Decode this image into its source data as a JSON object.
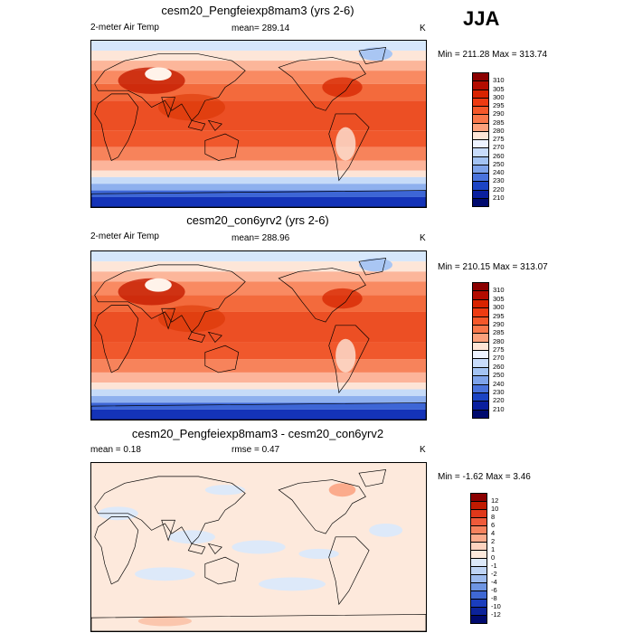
{
  "season": "JJA",
  "panels": [
    {
      "title": "cesm20_Pengfeiexp8mam3 (yrs 2-6)",
      "left_label": "2-meter Air Temp",
      "mid_label": "mean= 289.14",
      "unit": "K",
      "minmax": "Min = 211.28 Max = 313.74",
      "kind": "abs",
      "colorbar_labels": [
        "310",
        "305",
        "300",
        "295",
        "290",
        "285",
        "280",
        "275",
        "270",
        "260",
        "250",
        "240",
        "230",
        "220",
        "210"
      ],
      "colorbar_colors": [
        "#8b0000",
        "#b30c00",
        "#d92300",
        "#ee3b12",
        "#f5582a",
        "#f9774a",
        "#fca17c",
        "#fee5d6",
        "#eef3ff",
        "#c8dcfb",
        "#a3c3f3",
        "#7ea3ea",
        "#4a73dc",
        "#1c44c4",
        "#0a1f9e",
        "#000a6e"
      ]
    },
    {
      "title": "cesm20_con6yrv2 (yrs 2-6)",
      "left_label": "2-meter Air Temp",
      "mid_label": "mean= 288.96",
      "unit": "K",
      "minmax": "Min = 210.15 Max = 313.07",
      "kind": "abs",
      "colorbar_labels": [
        "310",
        "305",
        "300",
        "295",
        "290",
        "285",
        "280",
        "275",
        "270",
        "260",
        "250",
        "240",
        "230",
        "220",
        "210"
      ],
      "colorbar_colors": [
        "#8b0000",
        "#b30c00",
        "#d92300",
        "#ee3b12",
        "#f5582a",
        "#f9774a",
        "#fca17c",
        "#fee5d6",
        "#eef3ff",
        "#c8dcfb",
        "#a3c3f3",
        "#7ea3ea",
        "#4a73dc",
        "#1c44c4",
        "#0a1f9e",
        "#000a6e"
      ]
    },
    {
      "title": "cesm20_Pengfeiexp8mam3 - cesm20_con6yrv2",
      "left_label": "mean =   0.18",
      "mid_label": "rmse =   0.47",
      "unit": "K",
      "minmax": "Min =  -1.62 Max =   3.46",
      "kind": "diff",
      "colorbar_labels": [
        "12",
        "10",
        "8",
        "6",
        "4",
        "2",
        "1",
        "0",
        "-1",
        "-2",
        "-4",
        "-6",
        "-8",
        "-10",
        "-12"
      ],
      "colorbar_colors": [
        "#8b0000",
        "#c01a00",
        "#e0381a",
        "#ef5a3a",
        "#f6825e",
        "#fbab8c",
        "#fdd3bf",
        "#fde9dc",
        "#dde9f9",
        "#bfd4f4",
        "#9dbbee",
        "#6e95e2",
        "#3f68d3",
        "#1a3dbd",
        "#0c239a",
        "#000a6e"
      ]
    }
  ]
}
